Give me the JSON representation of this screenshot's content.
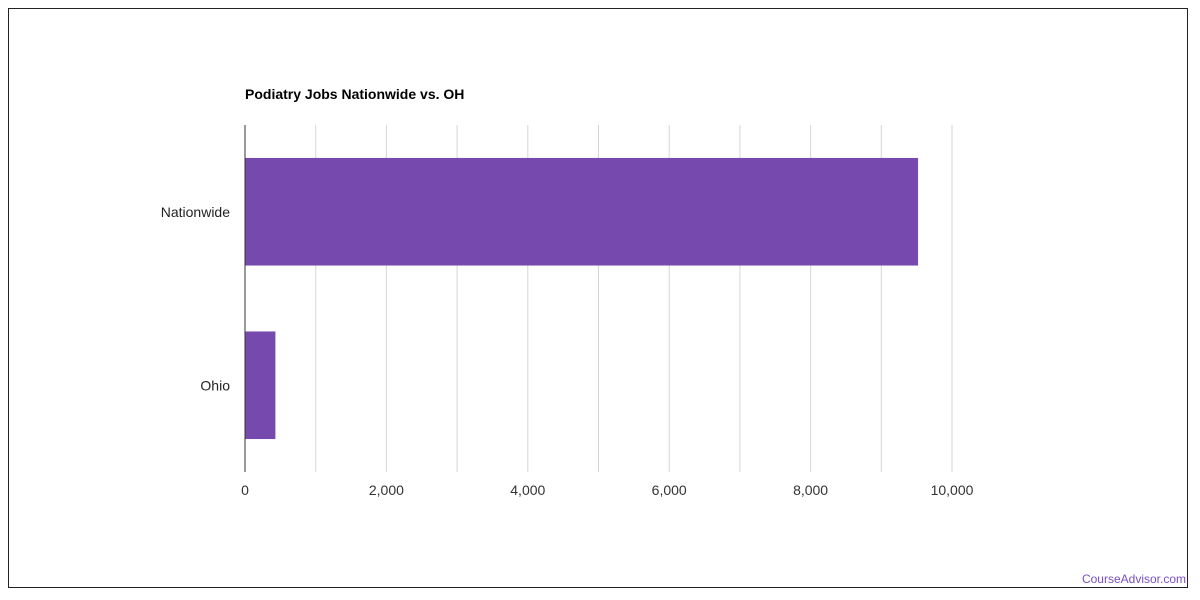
{
  "chart_data": {
    "type": "bar",
    "orientation": "horizontal",
    "title": "Podiatry Jobs Nationwide vs. OH",
    "xlabel": "",
    "ylabel": "",
    "categories": [
      "Nationwide",
      "Ohio"
    ],
    "values": [
      9520,
      430
    ],
    "xlim": [
      0,
      10000
    ],
    "x_ticks": [
      "0",
      "2,000",
      "4,000",
      "6,000",
      "8,000",
      "10,000"
    ],
    "grid": true,
    "legend": "none",
    "bar_color": "#7549ad"
  },
  "watermark": "CourseAdvisor.com"
}
